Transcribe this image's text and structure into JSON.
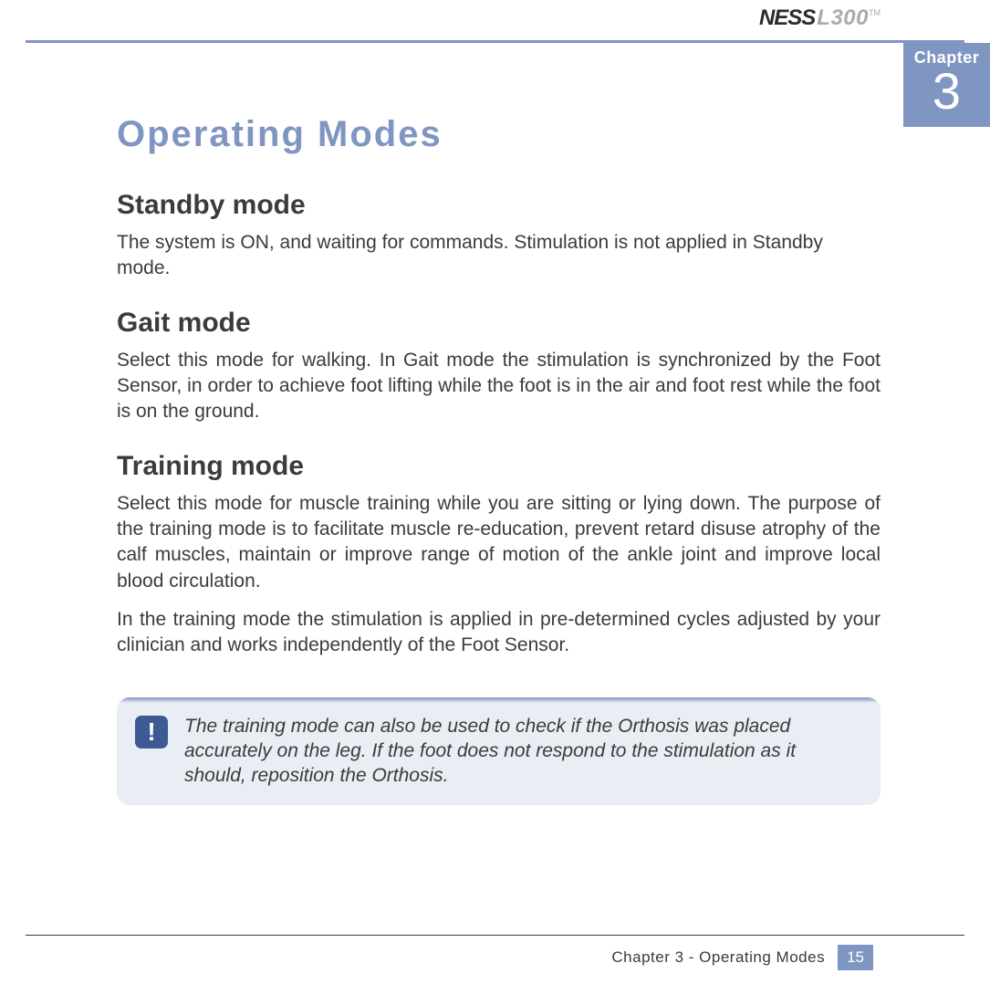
{
  "brand": {
    "name1": "NESS",
    "name2": "L300",
    "tm": "TM"
  },
  "chapter": {
    "label": "Chapter",
    "number": "3"
  },
  "title": "Operating Modes",
  "sections": {
    "s1": {
      "heading": "Standby mode",
      "p1": "The system is ON, and waiting for commands.  Stimulation is not applied in Standby mode."
    },
    "s2": {
      "heading": "Gait mode",
      "p1": "Select this mode for walking. In Gait mode the stimulation is synchronized by the Foot Sensor, in order to achieve foot lifting while the foot is in the air and foot rest while the foot is on the ground."
    },
    "s3": {
      "heading": "Training mode",
      "p1": "Select this mode for muscle training while you are sitting or lying down. The purpose of the training mode is to facilitate muscle re-education, prevent retard disuse atrophy of the calf muscles, maintain or improve range of motion of the ankle joint and improve local blood circulation.",
      "p2": "In the training mode the stimulation is applied in pre-determined cycles adjusted by your clinician and works independently of the Foot Sensor."
    }
  },
  "callout": {
    "icon": "!",
    "text": "The training mode can also be used to check if the Orthosis was placed accurately on the leg. If the foot does not respond to the stimulation as it should, reposition the Orthosis."
  },
  "footer": {
    "text": "Chapter 3 - Operating Modes",
    "page": "15"
  },
  "colors": {
    "accent": "#7f96c3",
    "callout_icon_bg": "#3e5a95",
    "callout_bg": "#e9edf4",
    "text": "#3b3b3b",
    "brand_grey": "#a9abaf"
  }
}
